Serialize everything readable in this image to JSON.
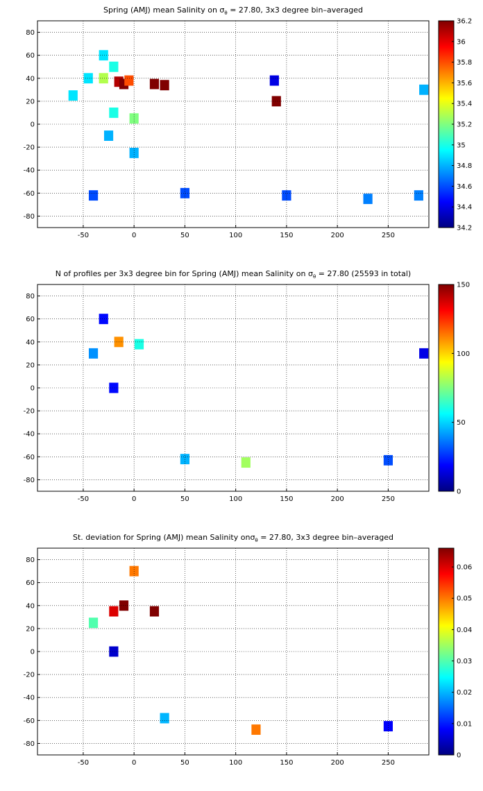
{
  "chart_data": [
    {
      "type": "heatmap",
      "title": {
        "pre": "Spring (AMJ) mean Salinity on ",
        "sym": "σ",
        "sub": "θ",
        "post": " = 27.80, 3x3 degree bin–averaged"
      },
      "x_ticks": [
        "-50",
        "0",
        "50",
        "100",
        "150",
        "200",
        "250"
      ],
      "x_tick_values": [
        -50,
        0,
        50,
        100,
        150,
        200,
        250
      ],
      "y_ticks": [
        "80",
        "60",
        "40",
        "20",
        "0",
        "-20",
        "-40",
        "-60",
        "-80"
      ],
      "y_tick_values": [
        80,
        60,
        40,
        20,
        0,
        -20,
        -40,
        -60,
        -80
      ],
      "xlim": [
        -95,
        290
      ],
      "ylim": [
        -90,
        90
      ],
      "grid": true,
      "colorbar": {
        "ticks": [
          "36.2",
          "36",
          "35.8",
          "35.6",
          "35.4",
          "35.2",
          "35",
          "34.8",
          "34.6",
          "34.4",
          "34.2"
        ],
        "tick_values": [
          36.2,
          36.0,
          35.8,
          35.6,
          35.4,
          35.2,
          35.0,
          34.8,
          34.6,
          34.4,
          34.2
        ],
        "range": [
          34.2,
          36.2
        ],
        "colormap": "jet"
      },
      "bins": [
        {
          "x": -30,
          "y": 60,
          "value": 34.9
        },
        {
          "x": -20,
          "y": 50,
          "value": 35.0
        },
        {
          "x": -45,
          "y": 40,
          "value": 34.9
        },
        {
          "x": -30,
          "y": 40,
          "value": 35.3
        },
        {
          "x": -15,
          "y": 37,
          "value": 36.1
        },
        {
          "x": -10,
          "y": 35,
          "value": 36.2
        },
        {
          "x": -5,
          "y": 38,
          "value": 35.8
        },
        {
          "x": 20,
          "y": 35,
          "value": 36.2
        },
        {
          "x": 30,
          "y": 34,
          "value": 36.2
        },
        {
          "x": -60,
          "y": 25,
          "value": 34.9
        },
        {
          "x": -20,
          "y": 10,
          "value": 35.0
        },
        {
          "x": 0,
          "y": 5,
          "value": 35.2
        },
        {
          "x": -25,
          "y": -10,
          "value": 34.8
        },
        {
          "x": 0,
          "y": -25,
          "value": 34.8
        },
        {
          "x": 138,
          "y": 38,
          "value": 34.4
        },
        {
          "x": 140,
          "y": 20,
          "value": 36.2
        },
        {
          "x": 285,
          "y": 30,
          "value": 34.8
        },
        {
          "x": -40,
          "y": -62,
          "value": 34.6
        },
        {
          "x": 50,
          "y": -60,
          "value": 34.6
        },
        {
          "x": 150,
          "y": -62,
          "value": 34.6
        },
        {
          "x": 230,
          "y": -65,
          "value": 34.7
        },
        {
          "x": 280,
          "y": -62,
          "value": 34.7
        }
      ]
    },
    {
      "type": "heatmap",
      "title": {
        "pre": "N of profiles per 3x3 degree bin for Spring (AMJ) mean Salinity on ",
        "sym": "σ",
        "sub": "θ",
        "post": " = 27.80 (25593 in total)"
      },
      "x_ticks": [
        "-50",
        "0",
        "50",
        "100",
        "150",
        "200",
        "250"
      ],
      "x_tick_values": [
        -50,
        0,
        50,
        100,
        150,
        200,
        250
      ],
      "y_ticks": [
        "80",
        "60",
        "40",
        "20",
        "0",
        "-20",
        "-40",
        "-60",
        "-80"
      ],
      "y_tick_values": [
        80,
        60,
        40,
        20,
        0,
        -20,
        -40,
        -60,
        -80
      ],
      "xlim": [
        -95,
        290
      ],
      "ylim": [
        -90,
        90
      ],
      "grid": true,
      "colorbar": {
        "ticks": [
          "150",
          "100",
          "50",
          "0"
        ],
        "tick_values": [
          150,
          100,
          50,
          0
        ],
        "range": [
          0,
          150
        ],
        "colormap": "jet"
      },
      "bins": [
        {
          "x": -30,
          "y": 60,
          "value": 20
        },
        {
          "x": -15,
          "y": 40,
          "value": 110
        },
        {
          "x": 5,
          "y": 38,
          "value": 60
        },
        {
          "x": -40,
          "y": 30,
          "value": 40
        },
        {
          "x": -20,
          "y": 0,
          "value": 20
        },
        {
          "x": 50,
          "y": -62,
          "value": 45
        },
        {
          "x": 110,
          "y": -65,
          "value": 80
        },
        {
          "x": 250,
          "y": -63,
          "value": 30
        },
        {
          "x": 285,
          "y": 30,
          "value": 15
        }
      ]
    },
    {
      "type": "heatmap",
      "title": {
        "pre": "St. deviation for Spring (AMJ) mean Salinity on",
        "sym": "σ",
        "sub": "θ",
        "post": " = 27.80, 3x3 degree bin–averaged"
      },
      "x_ticks": [
        "-50",
        "0",
        "50",
        "100",
        "150",
        "200",
        "250"
      ],
      "x_tick_values": [
        -50,
        0,
        50,
        100,
        150,
        200,
        250
      ],
      "y_ticks": [
        "80",
        "60",
        "40",
        "20",
        "0",
        "-20",
        "-40",
        "-60",
        "-80"
      ],
      "y_tick_values": [
        80,
        60,
        40,
        20,
        0,
        -20,
        -40,
        -60,
        -80
      ],
      "xlim": [
        -95,
        290
      ],
      "ylim": [
        -90,
        90
      ],
      "grid": true,
      "colorbar": {
        "ticks": [
          "0.06",
          "0.05",
          "0.04",
          "0.03",
          "0.02",
          "0.01",
          "0"
        ],
        "tick_values": [
          0.06,
          0.05,
          0.04,
          0.03,
          0.02,
          0.01,
          0
        ],
        "range": [
          0,
          0.066
        ],
        "colormap": "jet"
      },
      "bins": [
        {
          "x": 0,
          "y": 70,
          "value": 0.05
        },
        {
          "x": -20,
          "y": 35,
          "value": 0.06
        },
        {
          "x": -10,
          "y": 40,
          "value": 0.066
        },
        {
          "x": 20,
          "y": 35,
          "value": 0.066
        },
        {
          "x": -40,
          "y": 25,
          "value": 0.03
        },
        {
          "x": -20,
          "y": 0,
          "value": 0.005
        },
        {
          "x": 30,
          "y": -58,
          "value": 0.02
        },
        {
          "x": 120,
          "y": -68,
          "value": 0.05
        },
        {
          "x": 250,
          "y": -65,
          "value": 0.008
        }
      ]
    }
  ]
}
